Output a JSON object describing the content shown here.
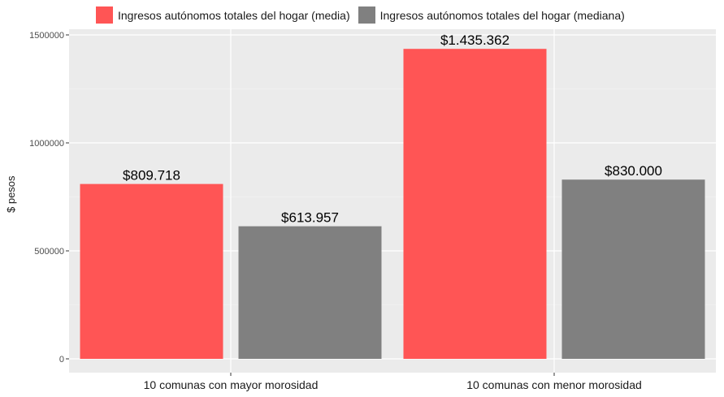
{
  "chart_data": {
    "type": "bar",
    "categories": [
      "10 comunas con mayor morosidad",
      "10 comunas con menor morosidad"
    ],
    "series": [
      {
        "name": "Ingresos autónomos totales del hogar (media)",
        "values": [
          809718,
          1435362
        ],
        "labels": [
          "$809.718",
          "$1.435.362"
        ],
        "color": "#ff5555"
      },
      {
        "name": "Ingresos autónomos totales del hogar (mediana)",
        "values": [
          613957,
          830000
        ],
        "labels": [
          "$613.957",
          "$830.000"
        ],
        "color": "#808080"
      }
    ],
    "ylabel": "$ pesos",
    "xlabel": "",
    "yticks": [
      0,
      500000,
      1000000,
      1500000
    ],
    "ytick_labels": [
      "0",
      "500000",
      "1000000",
      "1500000"
    ],
    "ylim": [
      0,
      1500000
    ],
    "grid": true,
    "legend_position": "top",
    "background": "#ebebeb"
  }
}
